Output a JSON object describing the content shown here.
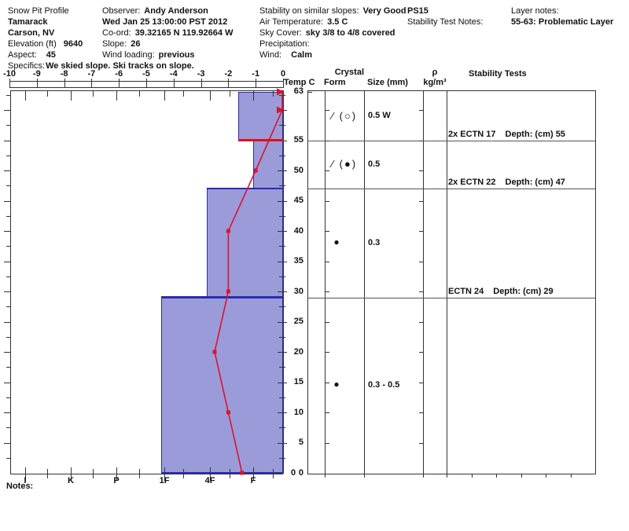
{
  "header": {
    "site": {
      "label": "Snow Pit Profile",
      "name": "Tamarack",
      "location": "Carson, NV",
      "elevation_label": "Elevation (ft)",
      "elevation": "9640",
      "aspect_label": "Aspect:",
      "aspect": "45",
      "specifics_label": "Specifics:",
      "specifics": "We skied slope. Ski tracks on slope."
    },
    "observation": {
      "observer_label": "Observer:",
      "observer": "Andy Anderson",
      "datetime": "Wed Jan 25 13:00:00 PST 2012",
      "coord_label": "Co-ord:",
      "coord": "39.32165 N 119.92664 W",
      "slope_label": "Slope:",
      "slope": "26",
      "wind_loading_label": "Wind loading:",
      "wind_loading": "previous"
    },
    "conditions": {
      "stability_label": "Stability on similar slopes:",
      "stability": "Very Good",
      "air_temp_label": "Air Temperature:",
      "air_temp": "3.5 C",
      "sky_label": "Sky Cover:",
      "sky": "sky 3/8 to 4/8 covered",
      "precip_label": "Precipitation:",
      "wind_label": "Wind:",
      "wind": "Calm"
    },
    "tests": {
      "code": "PS15",
      "notes_label": "Stability Test Notes:"
    },
    "layer_notes": {
      "label": "Layer notes:",
      "note": "55-63: Problematic Layer"
    }
  },
  "columns": {
    "temp": "Temp C",
    "crystal_line1": "Crystal",
    "crystal_line2": "Form",
    "size": "Size (mm)",
    "density_line1": "ρ",
    "density_line2": "kg/m³",
    "stability": "Stability Tests"
  },
  "notes_label": "Notes:",
  "chart_data": {
    "type": "bar",
    "description": "Snow pit hardness profile (horizontal bars vs depth) with snow temperature line overlay",
    "depth_axis": {
      "unit": "cm",
      "min": 0,
      "max": 63,
      "tick_labels": [
        63,
        55,
        50,
        45,
        40,
        35,
        30,
        25,
        20,
        15,
        10,
        5,
        0
      ]
    },
    "temp_axis": {
      "label": "Temp C",
      "unit": "C",
      "min": -10,
      "max": 0,
      "ticks": [
        -10,
        -9,
        -8,
        -7,
        -6,
        -5,
        -4,
        -3,
        -2,
        -1,
        0
      ]
    },
    "hardness_axis": {
      "categories": [
        "I",
        "K",
        "P",
        "1F",
        "4F",
        "F"
      ]
    },
    "layers": [
      {
        "top_cm": 63,
        "bottom_cm": 55,
        "hardness": "4F-F",
        "crystal_form": "∕ (○)",
        "grain_size_mm": "0.5 W",
        "boundary": "red"
      },
      {
        "top_cm": 55,
        "bottom_cm": 47,
        "hardness": "F",
        "crystal_form": "∕ (●)",
        "grain_size_mm": "0.5",
        "boundary": "blue"
      },
      {
        "top_cm": 47,
        "bottom_cm": 29,
        "hardness": "4F",
        "crystal_form": "●",
        "grain_size_mm": "0.3",
        "boundary": "blue"
      },
      {
        "top_cm": 29,
        "bottom_cm": 0,
        "hardness": "1F",
        "crystal_form": "●",
        "grain_size_mm": "0.3 - 0.5",
        "boundary": "blue"
      }
    ],
    "temperature_profile": {
      "unit": "C",
      "series": [
        {
          "depth_cm": 50,
          "temp_c": -1.0
        },
        {
          "depth_cm": 40,
          "temp_c": -2.0
        },
        {
          "depth_cm": 30,
          "temp_c": -2.0
        },
        {
          "depth_cm": 20,
          "temp_c": -2.5
        },
        {
          "depth_cm": 10,
          "temp_c": -2.0
        },
        {
          "depth_cm": 0,
          "temp_c": -1.5
        }
      ],
      "surface_arrow_depths_cm": [
        63,
        60
      ]
    },
    "stability_tests": [
      {
        "name": "2x ECTN 17",
        "depth_label": "Depth: (cm) 55",
        "depth_cm": 55
      },
      {
        "name": "2x ECTN 22",
        "depth_label": "Depth: (cm) 47",
        "depth_cm": 47
      },
      {
        "name": "ECTN 24",
        "depth_label": "Depth: (cm) 29",
        "depth_cm": 29
      }
    ],
    "colors": {
      "bar_fill": "#9b9bd9",
      "bar_border": "#2b2bb4",
      "boundary_line": "#2b2bb4",
      "problem_layer_line": "#e30b1d",
      "temp_line": "#d8142e"
    }
  }
}
